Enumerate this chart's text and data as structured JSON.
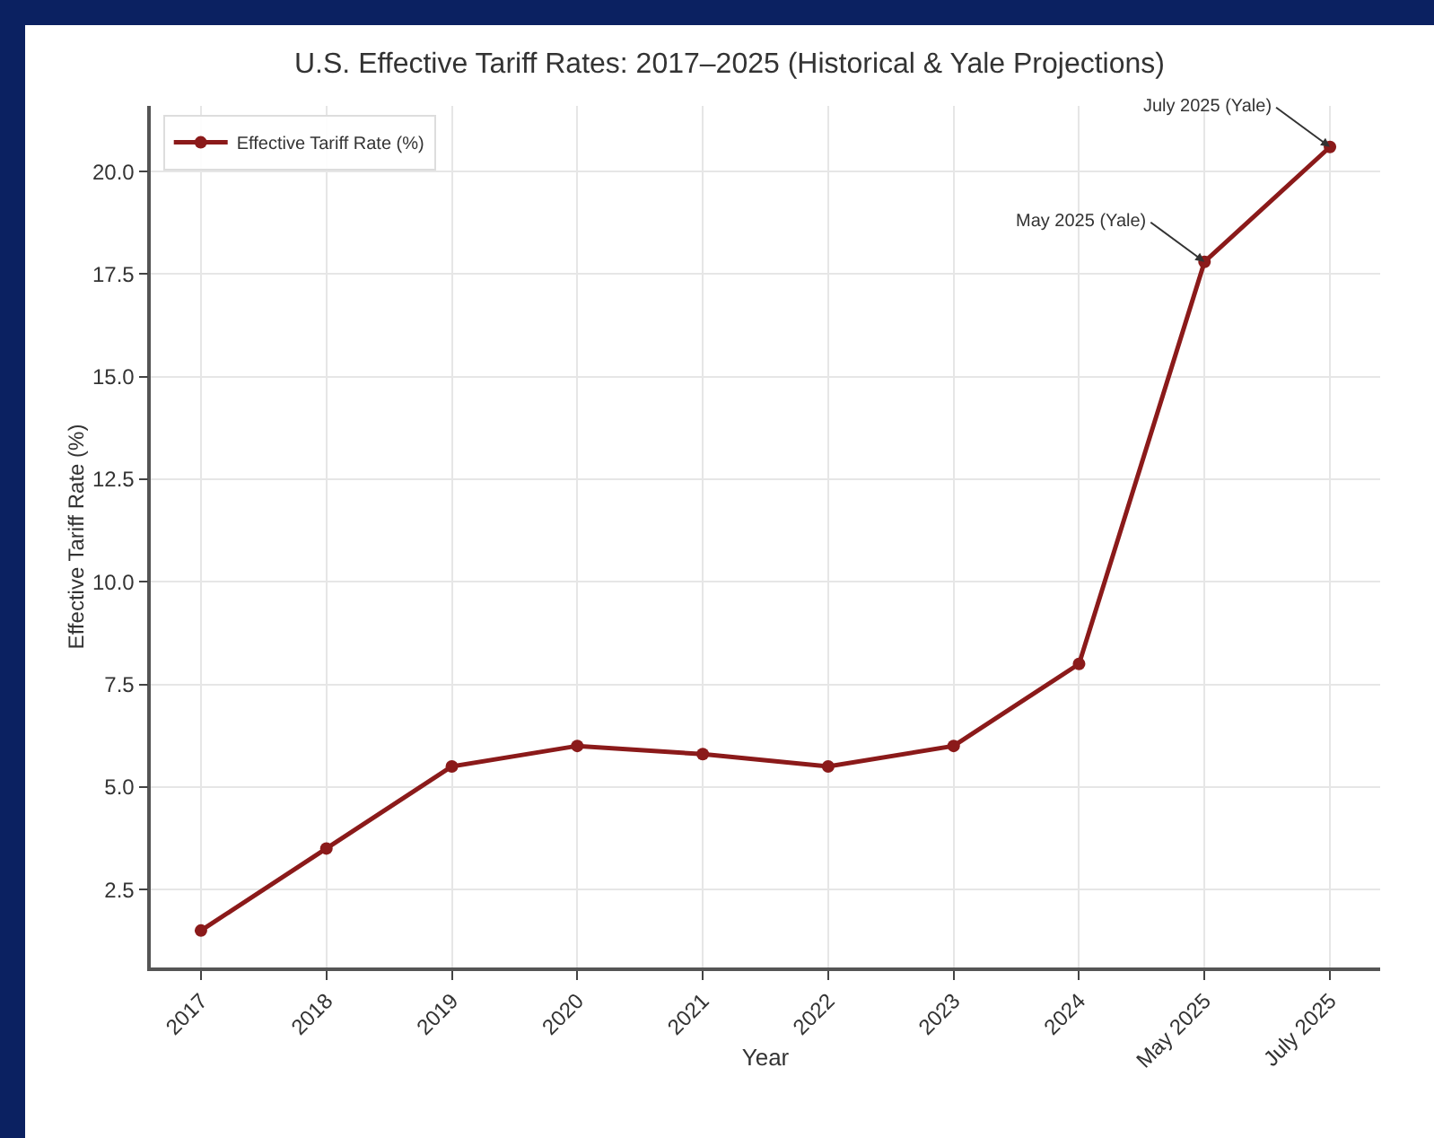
{
  "chart_data": {
    "type": "line",
    "title": "U.S. Effective Tariff Rates: 2017–2025 (Historical & Yale Projections)",
    "xlabel": "Year",
    "ylabel": "Effective Tariff Rate (%)",
    "categories": [
      "2017",
      "2018",
      "2019",
      "2020",
      "2021",
      "2022",
      "2023",
      "2024",
      "May 2025",
      "July 2025"
    ],
    "series": [
      {
        "name": "Effective Tariff Rate (%)",
        "color": "#8b1a1a",
        "values": [
          1.5,
          3.5,
          5.5,
          6.0,
          5.8,
          5.5,
          6.0,
          8.0,
          17.8,
          20.6
        ]
      }
    ],
    "ylim": [
      0.6,
      21.6
    ],
    "yticks": [
      {
        "value": 2.5,
        "label": "2.5"
      },
      {
        "value": 5,
        "label": "5.0"
      },
      {
        "value": 7.5,
        "label": "7.5"
      },
      {
        "value": 10,
        "label": "10.0"
      },
      {
        "value": 12.5,
        "label": "12.5"
      },
      {
        "value": 15,
        "label": "15.0"
      },
      {
        "value": 17.5,
        "label": "17.5"
      },
      {
        "value": 20,
        "label": "20.0"
      }
    ],
    "annotations": [
      {
        "text": "May 2025 (Yale)",
        "x": "May 2025",
        "y": 17.8
      },
      {
        "text": "July 2025 (Yale)",
        "x": "July 2025",
        "y": 20.6
      }
    ],
    "grid": true,
    "legend": "top left",
    "marker": "circle",
    "line_style": "solid"
  }
}
